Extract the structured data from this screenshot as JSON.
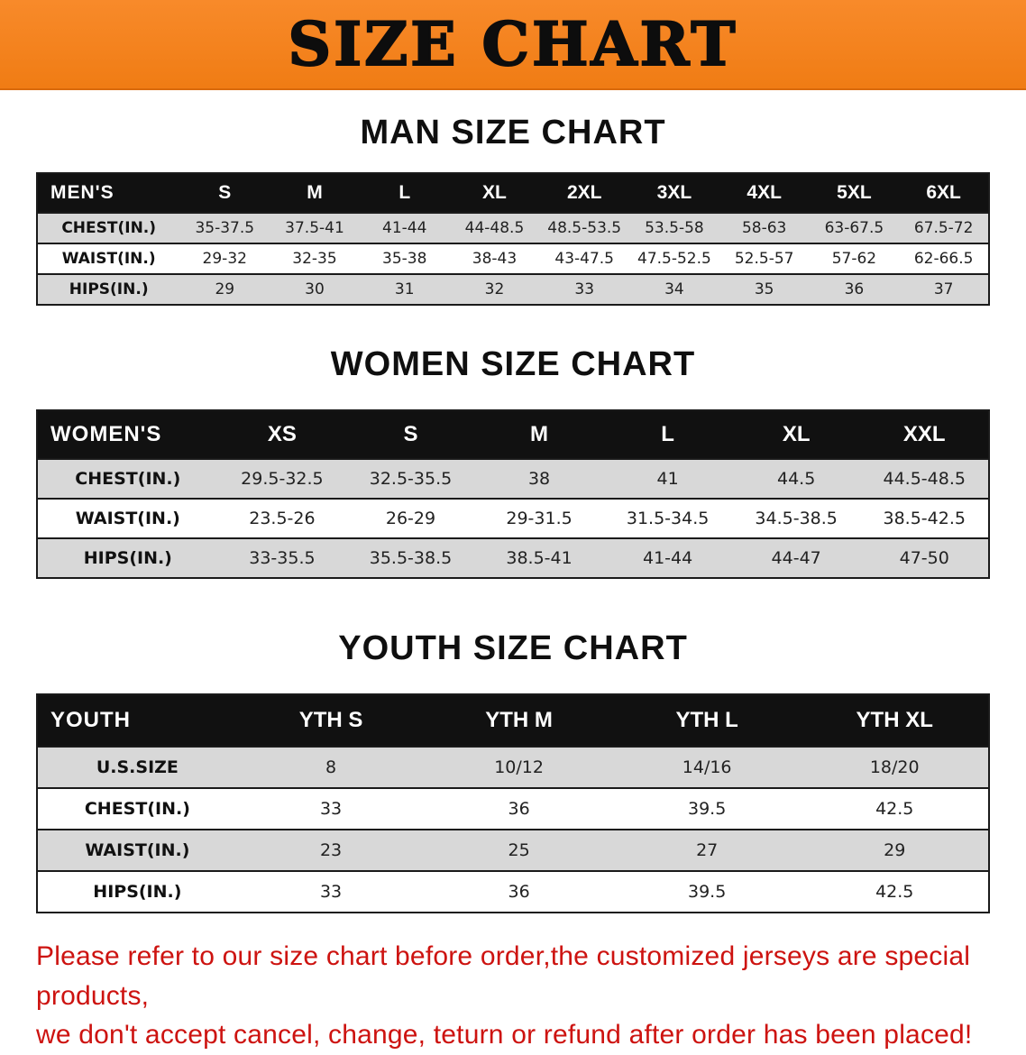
{
  "banner": {
    "title": "SIZE CHART"
  },
  "colors": {
    "banner_bg": "#f07c14",
    "table_header_bg": "#111111",
    "row_stripe": "#d8d8d8",
    "footer_text": "#cd1310"
  },
  "sections": [
    {
      "id": "men",
      "heading": "MAN SIZE CHART",
      "table": {
        "header_label": "MEN'S",
        "columns": [
          "S",
          "M",
          "L",
          "XL",
          "2XL",
          "3XL",
          "4XL",
          "5XL",
          "6XL"
        ],
        "rows": [
          {
            "label": "CHEST(IN.)",
            "values": [
              "35-37.5",
              "37.5-41",
              "41-44",
              "44-48.5",
              "48.5-53.5",
              "53.5-58",
              "58-63",
              "63-67.5",
              "67.5-72"
            ]
          },
          {
            "label": "WAIST(IN.)",
            "values": [
              "29-32",
              "32-35",
              "35-38",
              "38-43",
              "43-47.5",
              "47.5-52.5",
              "52.5-57",
              "57-62",
              "62-66.5"
            ]
          },
          {
            "label": "HIPS(IN.)",
            "values": [
              "29",
              "30",
              "31",
              "32",
              "33",
              "34",
              "35",
              "36",
              "37"
            ]
          }
        ]
      }
    },
    {
      "id": "women",
      "heading": "WOMEN SIZE CHART",
      "table": {
        "header_label": "WOMEN'S",
        "columns": [
          "XS",
          "S",
          "M",
          "L",
          "XL",
          "XXL"
        ],
        "rows": [
          {
            "label": "CHEST(IN.)",
            "values": [
              "29.5-32.5",
              "32.5-35.5",
              "38",
              "41",
              "44.5",
              "44.5-48.5"
            ]
          },
          {
            "label": "WAIST(IN.)",
            "values": [
              "23.5-26",
              "26-29",
              "29-31.5",
              "31.5-34.5",
              "34.5-38.5",
              "38.5-42.5"
            ]
          },
          {
            "label": "HIPS(IN.)",
            "values": [
              "33-35.5",
              "35.5-38.5",
              "38.5-41",
              "41-44",
              "44-47",
              "47-50"
            ]
          }
        ]
      }
    },
    {
      "id": "youth",
      "heading": "YOUTH SIZE CHART",
      "table": {
        "header_label": "YOUTH",
        "columns": [
          "YTH S",
          "YTH M",
          "YTH L",
          "YTH XL"
        ],
        "rows": [
          {
            "label": "U.S.SIZE",
            "values": [
              "8",
              "10/12",
              "14/16",
              "18/20"
            ]
          },
          {
            "label": "CHEST(IN.)",
            "values": [
              "33",
              "36",
              "39.5",
              "42.5"
            ]
          },
          {
            "label": "WAIST(IN.)",
            "values": [
              "23",
              "25",
              "27",
              "29"
            ]
          },
          {
            "label": "HIPS(IN.)",
            "values": [
              "33",
              "36",
              "39.5",
              "42.5"
            ]
          }
        ]
      }
    }
  ],
  "footer": {
    "line1": "Please refer to our size chart before order,the customized jerseys are special products,",
    "line2": "we don't accept cancel, change, teturn or refund after order has been placed!"
  }
}
